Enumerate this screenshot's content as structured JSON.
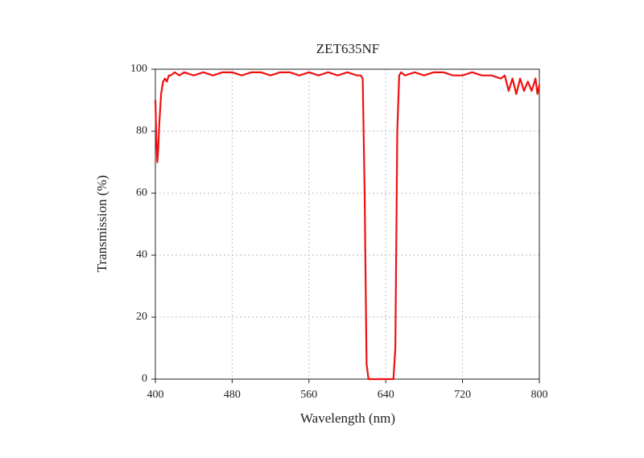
{
  "chart_data": {
    "type": "line",
    "title": "ZET635NF",
    "x_label": "Wavelength (nm)",
    "y_label": "Transmission (%)",
    "x": [
      400,
      401,
      402,
      403,
      404,
      406,
      408,
      410,
      412,
      414,
      416,
      420,
      425,
      430,
      440,
      450,
      460,
      470,
      480,
      490,
      500,
      510,
      520,
      530,
      540,
      550,
      560,
      570,
      580,
      590,
      600,
      610,
      614,
      616,
      618,
      620,
      622,
      630,
      640,
      648,
      650,
      652,
      654,
      656,
      660,
      670,
      680,
      690,
      700,
      710,
      720,
      730,
      740,
      750,
      760,
      764,
      768,
      772,
      776,
      780,
      784,
      788,
      792,
      796,
      798,
      800
    ],
    "series": [
      {
        "name": "ZET635NF",
        "color": "#ee1111",
        "values": [
          90,
          78,
          70,
          74,
          82,
          92,
          96,
          97,
          96,
          98,
          98,
          99,
          98,
          99,
          98,
          99,
          98,
          99,
          99,
          98,
          99,
          99,
          98,
          99,
          99,
          98,
          99,
          98,
          99,
          98,
          99,
          98,
          98,
          97,
          60,
          5,
          0,
          0,
          0,
          0,
          10,
          80,
          98,
          99,
          98,
          99,
          98,
          99,
          99,
          98,
          98,
          99,
          98,
          98,
          97,
          98,
          93,
          97,
          92,
          97,
          93,
          96,
          93,
          97,
          92,
          95
        ]
      }
    ],
    "xlim": [
      400,
      800
    ],
    "xticks": [
      400,
      480,
      560,
      640,
      720,
      800
    ],
    "ylim": [
      0,
      100
    ],
    "yticks": [
      0,
      20,
      40,
      60,
      80,
      100
    ],
    "grid": true
  }
}
